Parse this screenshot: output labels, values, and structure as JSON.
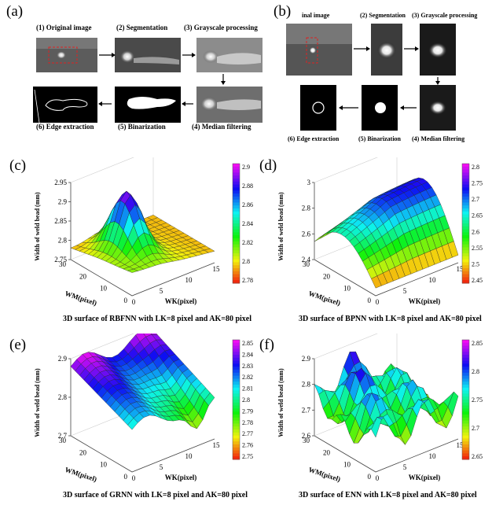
{
  "panels": {
    "a": {
      "label": "(a)",
      "steps": [
        "(1) Original image",
        "(2) Segmentation",
        "(3) Grayscale processing",
        "(6) Edge extraction",
        "(5) Binarization",
        "(4) Median filtering"
      ]
    },
    "b": {
      "label": "(b)",
      "steps": [
        "inal image",
        "(2) Segmentation",
        "(3) Grayscale processing",
        "(6) Edge extraction",
        "(5) Binarization",
        "(4) Median filtering"
      ]
    },
    "c": {
      "label": "(c)",
      "caption": "3D surface of RBFNN with LK=8 pixel and AK=80 pixel"
    },
    "d": {
      "label": "(d)",
      "caption": "3D surface of BPNN with LK=8 pixel and AK=80 pixel"
    },
    "e": {
      "label": "(e)",
      "caption": "3D surface of GRNN with LK=8 pixel and AK=80 pixel"
    },
    "f": {
      "label": "(f)",
      "caption": "3D surface of ENN with LK=8 pixel and AK=80 pixel"
    }
  },
  "chart_data": [
    {
      "type": "surface3d",
      "panel": "c",
      "zlabel": "Width of weld bead (mm)",
      "xlabel": "WK(pixel)",
      "ylabel": "WM(pixel)",
      "z_ticks": [
        "2.95",
        "2.9",
        "2.85",
        "2.8",
        "2.75"
      ],
      "x_ticks": [
        "0",
        "5",
        "10",
        "15"
      ],
      "y_ticks": [
        "30",
        "20",
        "10",
        "0"
      ],
      "colorbar_ticks": [
        "2.9",
        "2.88",
        "2.86",
        "2.84",
        "2.82",
        "2.8",
        "2.78"
      ],
      "zlim": [
        2.75,
        2.95
      ]
    },
    {
      "type": "surface3d",
      "panel": "d",
      "zlabel": "Width of weld bead (mm)",
      "xlabel": "WK(pixel)",
      "ylabel": "WM(pixel)",
      "z_ticks": [
        "3",
        "2.8",
        "2.6",
        "2.4"
      ],
      "x_ticks": [
        "0",
        "5",
        "10",
        "15"
      ],
      "y_ticks": [
        "30",
        "20",
        "10",
        "0"
      ],
      "colorbar_ticks": [
        "2.8",
        "2.75",
        "2.7",
        "2.65",
        "2.6",
        "2.55",
        "2.5",
        "2.45"
      ],
      "zlim": [
        2.4,
        3.0
      ]
    },
    {
      "type": "surface3d",
      "panel": "e",
      "zlabel": "Width of weld bead (mm)",
      "xlabel": "WK(pixel)",
      "ylabel": "WM(pixel)",
      "z_ticks": [
        "2.9",
        "2.8",
        "2.7"
      ],
      "x_ticks": [
        "0",
        "5",
        "10",
        "15"
      ],
      "y_ticks": [
        "30",
        "20",
        "10",
        "0"
      ],
      "colorbar_ticks": [
        "2.85",
        "2.84",
        "2.83",
        "2.82",
        "2.81",
        "2.8",
        "2.79",
        "2.78",
        "2.77",
        "2.76",
        "2.75"
      ],
      "zlim": [
        2.7,
        2.9
      ]
    },
    {
      "type": "surface3d",
      "panel": "f",
      "zlabel": "Width of weld bead (mm)",
      "xlabel": "WK(pixel)",
      "ylabel": "WM(pixel)",
      "z_ticks": [
        "2.9",
        "2.8",
        "2.7",
        "2.6"
      ],
      "x_ticks": [
        "0",
        "5",
        "10",
        "15"
      ],
      "y_ticks": [
        "30",
        "20",
        "10",
        "0"
      ],
      "colorbar_ticks": [
        "2.85",
        "2.8",
        "2.75",
        "2.7",
        "2.65"
      ],
      "zlim": [
        2.6,
        2.9
      ]
    }
  ]
}
